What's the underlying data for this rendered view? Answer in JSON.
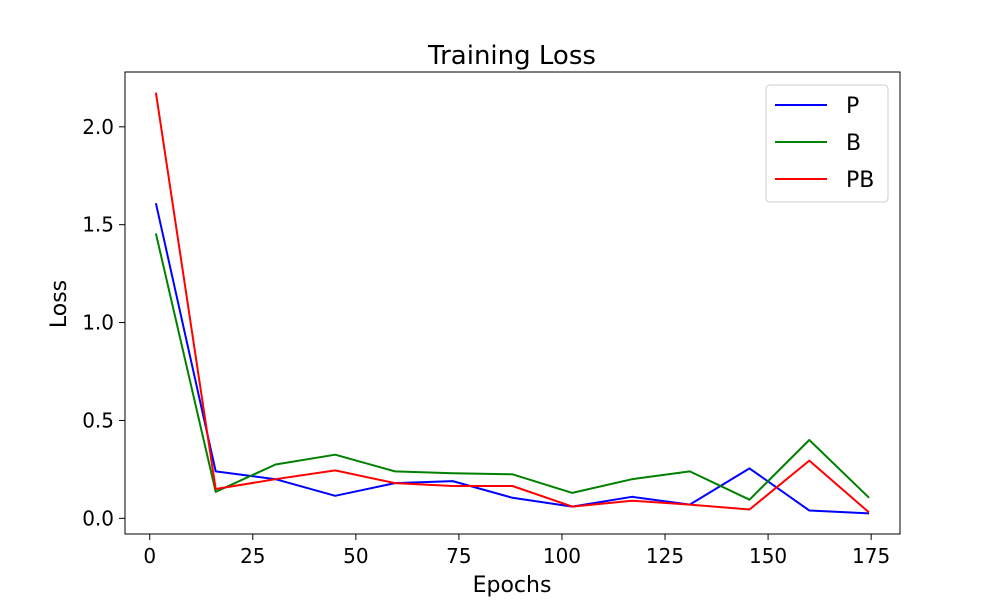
{
  "chart_data": {
    "type": "line",
    "title": "Training Loss",
    "xlabel": "Epochs",
    "ylabel": "Loss",
    "xlim": [
      -6,
      182
    ],
    "ylim": [
      -0.08,
      2.28
    ],
    "xticks": [
      0,
      25,
      50,
      75,
      100,
      125,
      150,
      175
    ],
    "xtick_labels": [
      "0",
      "25",
      "50",
      "75",
      "100",
      "125",
      "150",
      "175"
    ],
    "yticks": [
      0.0,
      0.5,
      1.0,
      1.5,
      2.0
    ],
    "ytick_labels": [
      "0.0",
      "0.5",
      "1.0",
      "1.5",
      "2.0"
    ],
    "grid": false,
    "legend_position": "top-right",
    "x": [
      1.5,
      16,
      30.5,
      45,
      59.5,
      73.5,
      88,
      102.5,
      117,
      131,
      145.5,
      160,
      174.5
    ],
    "series": [
      {
        "name": "P",
        "color": "#0000ff",
        "values": [
          1.61,
          0.24,
          0.2,
          0.115,
          0.18,
          0.19,
          0.105,
          0.06,
          0.11,
          0.07,
          0.255,
          0.04,
          0.025
        ]
      },
      {
        "name": "B",
        "color": "#008000",
        "values": [
          1.455,
          0.135,
          0.275,
          0.325,
          0.24,
          0.23,
          0.225,
          0.13,
          0.2,
          0.24,
          0.095,
          0.4,
          0.105
        ]
      },
      {
        "name": "PB",
        "color": "#ff0000",
        "values": [
          2.175,
          0.15,
          0.2,
          0.245,
          0.18,
          0.165,
          0.165,
          0.06,
          0.09,
          0.07,
          0.045,
          0.295,
          0.03
        ]
      }
    ]
  }
}
